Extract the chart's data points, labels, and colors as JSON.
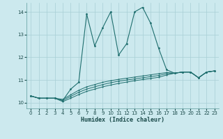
{
  "xlabel": "Humidex (Indice chaleur)",
  "xlim": [
    -0.5,
    23.5
  ],
  "ylim": [
    9.75,
    14.4
  ],
  "yticks": [
    10,
    11,
    12,
    13,
    14
  ],
  "xticks": [
    0,
    1,
    2,
    3,
    4,
    5,
    6,
    7,
    8,
    9,
    10,
    11,
    12,
    13,
    14,
    15,
    16,
    17,
    18,
    19,
    20,
    21,
    22,
    23
  ],
  "background_color": "#cce9ee",
  "grid_color": "#a8cfd5",
  "line_color": "#1e6e6e",
  "lines": {
    "main": [
      10.3,
      10.2,
      10.2,
      10.2,
      10.1,
      10.6,
      10.9,
      13.9,
      12.5,
      13.3,
      14.0,
      12.1,
      12.6,
      14.0,
      14.2,
      13.5,
      12.4,
      11.45,
      11.3,
      11.35,
      11.35,
      11.1,
      11.35,
      11.4
    ],
    "line2": [
      10.3,
      10.2,
      10.2,
      10.2,
      10.15,
      10.35,
      10.55,
      10.7,
      10.8,
      10.9,
      10.97,
      11.03,
      11.08,
      11.13,
      11.18,
      11.23,
      11.28,
      11.33,
      11.3,
      11.35,
      11.35,
      11.1,
      11.35,
      11.4
    ],
    "line3": [
      10.3,
      10.2,
      10.2,
      10.2,
      10.1,
      10.28,
      10.46,
      10.6,
      10.7,
      10.8,
      10.88,
      10.95,
      11.0,
      11.05,
      11.1,
      11.15,
      11.2,
      11.28,
      11.3,
      11.35,
      11.35,
      11.1,
      11.35,
      11.4
    ],
    "line4": [
      10.3,
      10.2,
      10.2,
      10.2,
      10.05,
      10.2,
      10.36,
      10.5,
      10.6,
      10.7,
      10.78,
      10.85,
      10.91,
      10.97,
      11.02,
      11.07,
      11.12,
      11.22,
      11.3,
      11.35,
      11.35,
      11.1,
      11.35,
      11.4
    ]
  }
}
